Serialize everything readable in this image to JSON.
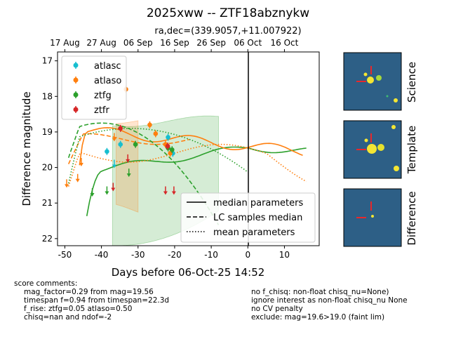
{
  "title": "2025xww -- ZTF18abznykw",
  "subtitle": "ra,dec=(339.9057,+11.007922)",
  "top_axis": {
    "labels": [
      "17 Aug",
      "27 Aug",
      "06 Sep",
      "16 Sep",
      "26 Sep",
      "06 Oct",
      "16 Oct"
    ],
    "days": [
      -50,
      -40,
      -30,
      -20,
      -10,
      0,
      10
    ]
  },
  "stamp_labels": [
    "Science",
    "Template",
    "Difference"
  ],
  "colors": {
    "atlasc": "#17becf",
    "atlaso": "#ff7f0e",
    "ztfg": "#2ca02c",
    "ztfr": "#d62728"
  },
  "chart_data": {
    "type": "scatter",
    "xlabel": "Days before 06-Oct-25 14:52",
    "ylabel": "Difference magnitude",
    "xlim": [
      -52,
      19.5
    ],
    "ylim": [
      22.2,
      16.75
    ],
    "xticks": [
      -50,
      -40,
      -30,
      -20,
      -10,
      0,
      10
    ],
    "yticks": [
      17,
      18,
      19,
      20,
      21,
      22
    ],
    "vline_x": 0,
    "legend_series": [
      "atlasc",
      "atlaso",
      "ztfg",
      "ztfr"
    ],
    "legend_lines": [
      "median parameters",
      "LC samples median",
      "mean parameters"
    ],
    "series": [
      {
        "name": "atlasc",
        "detections": [
          [
            -38.5,
            19.55
          ],
          [
            -34.8,
            19.35
          ],
          [
            -21.8,
            19.15
          ],
          [
            -20.5,
            19.6
          ]
        ],
        "upper_limits": [
          [
            -36.5,
            19.9
          ]
        ]
      },
      {
        "name": "atlaso",
        "detections": [
          [
            -33.3,
            17.8
          ],
          [
            -26.8,
            18.8
          ],
          [
            -25.2,
            19.05
          ],
          [
            -22.5,
            19.35
          ],
          [
            -21.2,
            19.6
          ]
        ],
        "upper_limits": [
          [
            -49.5,
            20.45
          ],
          [
            -46.5,
            20.3
          ],
          [
            -45.5,
            19.85
          ],
          [
            -36.5,
            19.15
          ]
        ]
      },
      {
        "name": "ztfg",
        "detections": [
          [
            -30.7,
            19.35
          ],
          [
            -21.8,
            19.45
          ],
          [
            -20.7,
            19.5
          ]
        ],
        "upper_limits": [
          [
            -42.5,
            20.7
          ],
          [
            -38.5,
            20.65
          ],
          [
            -32.5,
            20.15
          ]
        ]
      },
      {
        "name": "ztfr",
        "detections": [
          [
            -34.8,
            18.9
          ],
          [
            -21.9,
            19.4
          ]
        ],
        "upper_limits": [
          [
            -36.8,
            20.55
          ],
          [
            -32.8,
            19.75
          ],
          [
            -22.5,
            20.65
          ],
          [
            -20.2,
            20.65
          ]
        ]
      }
    ]
  },
  "comments_left": [
    "score comments:",
    "mag_factor=0.29 from mag=19.56",
    "timespan f=0.94 from timespan=22.3d",
    "f_rise: ztfg=0.05 atlaso=0.50",
    "chisq=nan and ndof=-2"
  ],
  "comments_right": [
    "no f_chisq: non-float chisq_nu=None)",
    "ignore interest as non-float chisq_nu None",
    "no CV penalty",
    "exclude: mag=19.6>19.0 (faint lim)"
  ]
}
